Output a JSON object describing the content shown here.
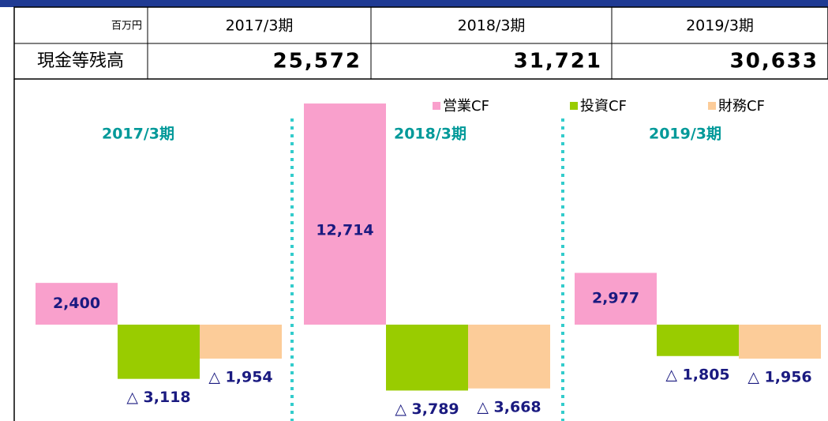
{
  "table": {
    "header": [
      "百万円",
      "2017/3期",
      "2018/3期",
      "2019/3期"
    ],
    "rows": [
      [
        "現金等残高",
        "25,572",
        "31,721",
        "30,633"
      ]
    ]
  },
  "chart_data": {
    "type": "bar",
    "categories": [
      "2017/3期",
      "2018/3期",
      "2019/3期"
    ],
    "series": [
      {
        "name": "営業CF",
        "color": "#f9a0cc",
        "values": [
          2400,
          12714,
          2977
        ],
        "value_labels": [
          "2,400",
          "12,714",
          "2,977"
        ]
      },
      {
        "name": "投資CF",
        "color": "#99cc00",
        "values": [
          -3118,
          -3789,
          -1805
        ],
        "value_labels": [
          "△ 3,118",
          "△ 3,789",
          "△ 1,805"
        ]
      },
      {
        "name": "財務CF",
        "color": "#fccc99",
        "values": [
          -1954,
          -3668,
          -1956
        ],
        "value_labels": [
          "△ 1,954",
          "△ 3,668",
          "△ 1,956"
        ]
      }
    ],
    "ylim": [
      -5540,
      13670
    ]
  }
}
